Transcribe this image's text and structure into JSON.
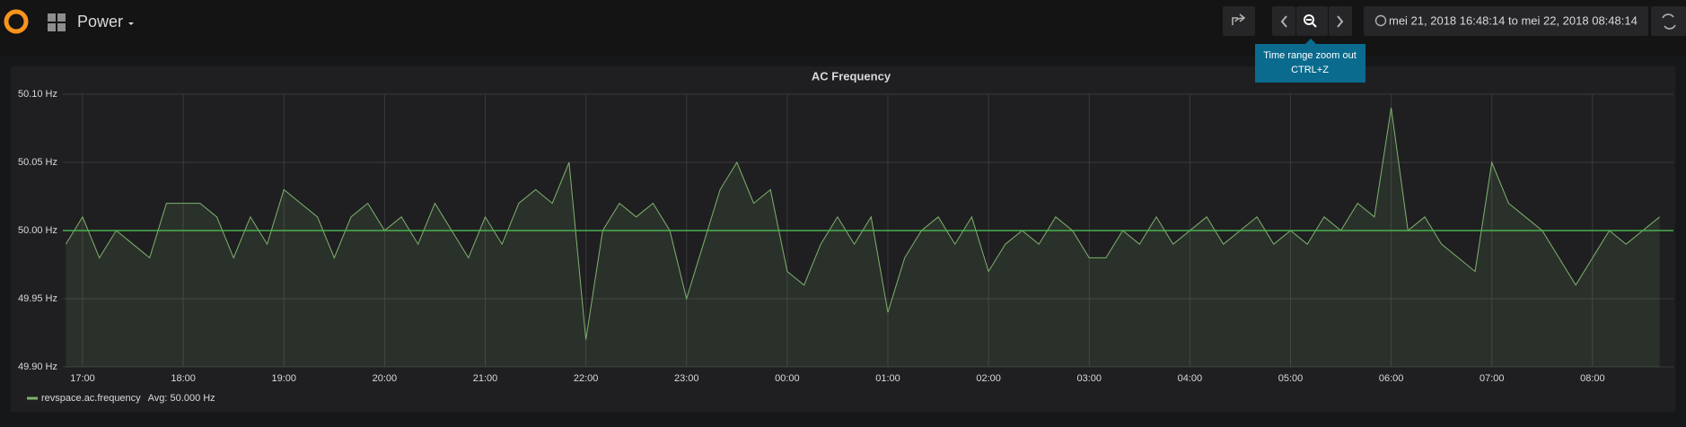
{
  "header": {
    "title": "Power",
    "time_range": "mei 21, 2018 16:48:14 to mei 22, 2018 08:48:14",
    "tooltip": [
      "Time range zoom out",
      "CTRL+Z"
    ]
  },
  "chart_data": {
    "type": "line",
    "title": "AC Frequency",
    "x": [
      "16:50",
      "17:00",
      "17:10",
      "17:20",
      "17:30",
      "17:40",
      "17:50",
      "18:00",
      "18:10",
      "18:20",
      "18:30",
      "18:40",
      "18:50",
      "19:00",
      "19:10",
      "19:20",
      "19:30",
      "19:40",
      "19:50",
      "20:00",
      "20:10",
      "20:20",
      "20:30",
      "20:40",
      "20:50",
      "21:00",
      "21:10",
      "21:20",
      "21:30",
      "21:40",
      "21:50",
      "22:00",
      "22:10",
      "22:20",
      "22:30",
      "22:40",
      "22:50",
      "23:00",
      "23:10",
      "23:20",
      "23:30",
      "23:40",
      "23:50",
      "00:00",
      "00:10",
      "00:20",
      "00:30",
      "00:40",
      "00:50",
      "01:00",
      "01:10",
      "01:20",
      "01:30",
      "01:40",
      "01:50",
      "02:00",
      "02:10",
      "02:20",
      "02:30",
      "02:40",
      "02:50",
      "03:00",
      "03:10",
      "03:20",
      "03:30",
      "03:40",
      "03:50",
      "04:00",
      "04:10",
      "04:20",
      "04:30",
      "04:40",
      "04:50",
      "05:00",
      "05:10",
      "05:20",
      "05:30",
      "05:40",
      "05:50",
      "06:00",
      "06:10",
      "06:20",
      "06:30",
      "06:40",
      "06:50",
      "07:00",
      "07:10",
      "07:20",
      "07:30",
      "07:40",
      "07:50",
      "08:00",
      "08:10",
      "08:20",
      "08:30",
      "08:40"
    ],
    "series": [
      {
        "name": "revspace.ac.frequency",
        "color": "#7eb26d",
        "values": [
          49.99,
          50.01,
          49.98,
          50.0,
          49.99,
          49.98,
          50.02,
          50.02,
          50.02,
          50.01,
          49.98,
          50.01,
          49.99,
          50.03,
          50.02,
          50.01,
          49.98,
          50.01,
          50.02,
          50.0,
          50.01,
          49.99,
          50.02,
          50.0,
          49.98,
          50.01,
          49.99,
          50.02,
          50.03,
          50.02,
          50.05,
          49.92,
          50.0,
          50.02,
          50.01,
          50.02,
          50.0,
          49.95,
          49.99,
          50.03,
          50.05,
          50.02,
          50.03,
          49.97,
          49.96,
          49.99,
          50.01,
          49.99,
          50.01,
          49.94,
          49.98,
          50.0,
          50.01,
          49.99,
          50.01,
          49.97,
          49.99,
          50.0,
          49.99,
          50.01,
          50.0,
          49.98,
          49.98,
          50.0,
          49.99,
          50.01,
          49.99,
          50.0,
          50.01,
          49.99,
          50.0,
          50.01,
          49.99,
          50.0,
          49.99,
          50.01,
          50.0,
          50.02,
          50.01,
          50.09,
          50.0,
          50.01,
          49.99,
          49.98,
          49.97,
          50.05,
          50.02,
          50.01,
          50.0,
          49.98,
          49.96,
          49.98,
          50.0,
          49.99,
          50.0,
          50.01
        ]
      }
    ],
    "legend_value": "Avg: 50.000 Hz",
    "threshold": 50.0,
    "threshold_color": "#4caf50",
    "xlim": [
      "16:48:14",
      "08:48:14"
    ],
    "xticks": [
      "17:00",
      "18:00",
      "19:00",
      "20:00",
      "21:00",
      "22:00",
      "23:00",
      "00:00",
      "01:00",
      "02:00",
      "03:00",
      "04:00",
      "05:00",
      "06:00",
      "07:00",
      "08:00"
    ],
    "ylim": [
      49.9,
      50.1
    ],
    "yticks": [
      {
        "value": 49.9,
        "label": "49.90 Hz"
      },
      {
        "value": 49.95,
        "label": "49.95 Hz"
      },
      {
        "value": 50.0,
        "label": "50.00 Hz"
      },
      {
        "value": 50.05,
        "label": "50.05 Hz"
      },
      {
        "value": 50.1,
        "label": "50.10 Hz"
      }
    ],
    "grid": true
  }
}
